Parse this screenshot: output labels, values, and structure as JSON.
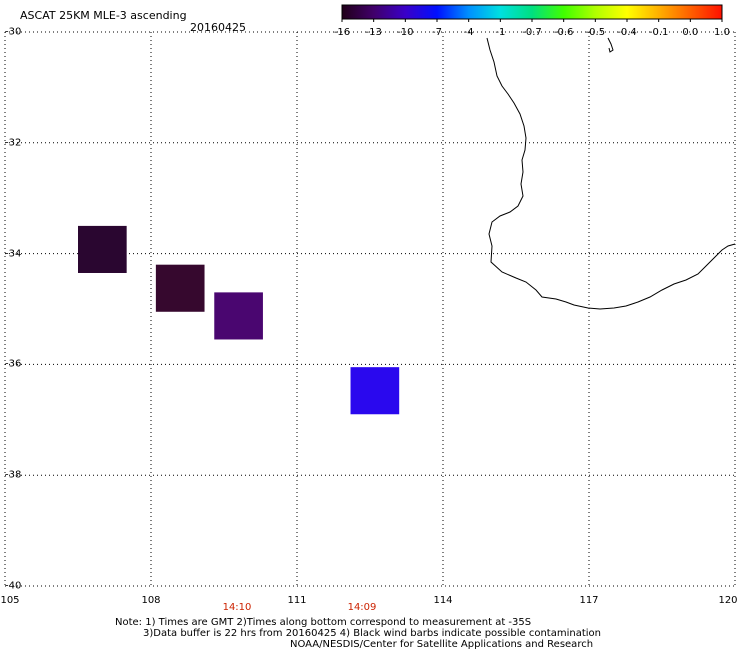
{
  "title": "ASCAT 25KM MLE-3 ascending",
  "date": "20160425",
  "colorbar": {
    "labels": [
      "-16",
      "-13",
      "-10",
      "-7",
      "-4",
      "-1",
      "-0.7",
      "-0.6",
      "-0.5",
      "-0.4",
      "-0.1",
      "0.0",
      "1.0"
    ],
    "colors": [
      "#200018",
      "#40006a",
      "#3a00c8",
      "#0010ff",
      "#0090ff",
      "#00e0e0",
      "#00e080",
      "#40ff00",
      "#b0ff00",
      "#ffff00",
      "#ffb000",
      "#ff6000",
      "#ff1000"
    ]
  },
  "axes": {
    "lat_labels": [
      "-30",
      "-32",
      "-34",
      "-36",
      "-38",
      "-40"
    ],
    "lon_labels": [
      "105",
      "108",
      "111",
      "114",
      "117",
      "120"
    ]
  },
  "time_labels": [
    "14:10",
    "14:09"
  ],
  "cells": [
    {
      "lon": 106.5,
      "lat": -33.5,
      "lon2": 107.5,
      "lat2": -34.35,
      "color": "#2a0630"
    },
    {
      "lon": 108.1,
      "lat": -34.2,
      "lon2": 109.1,
      "lat2": -35.05,
      "color": "#36082e"
    },
    {
      "lon": 109.3,
      "lat": -34.7,
      "lon2": 110.3,
      "lat2": -35.55,
      "color": "#4a0670"
    },
    {
      "lon": 112.1,
      "lat": -36.05,
      "lon2": 113.1,
      "lat2": -36.9,
      "color": "#2a08ee"
    }
  ],
  "notes": [
    "Note: 1) Times are GMT 2)Times along bottom correspond to measurement at -35S",
    "3)Data buffer is 22 hrs from 20160425 4) Black wind barbs indicate possible contamination",
    "NOAA/NESDIS/Center for Satellite Applications and Research"
  ]
}
